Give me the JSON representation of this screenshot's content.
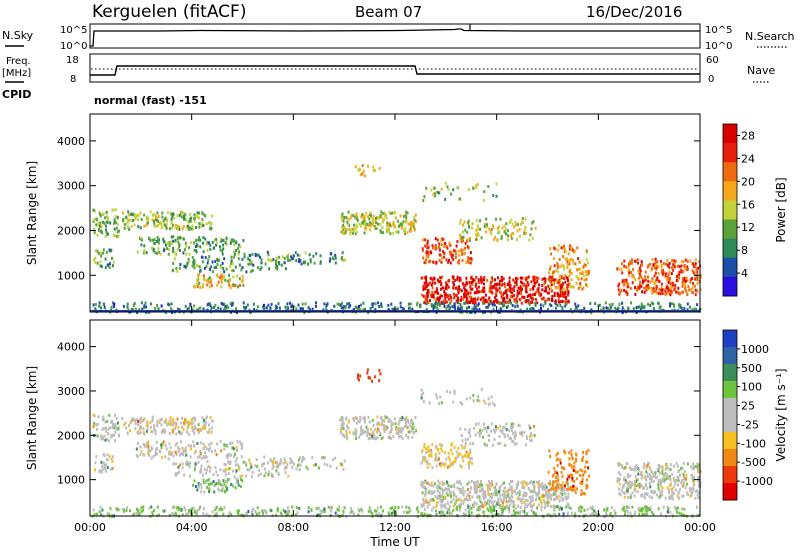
{
  "header": {
    "station": "Kerguelen (fitACF)",
    "beam": "Beam 07",
    "date": "16/Dec/2016"
  },
  "strip_labels": {
    "nsky": "N.Sky",
    "nsky_top": "10^5",
    "nsky_bottom": "10^0",
    "nsky_right_top": "10^5",
    "nsky_right_bottom": "10^0",
    "nsearch": "N.Search",
    "freq_line1": "Freq.",
    "freq_line2": "[MHz]",
    "freq_top": "18",
    "freq_bottom": "8",
    "nave_top": "60",
    "nave_bottom": "0",
    "nave": "Nave",
    "cpid": "CPID",
    "mode": "normal (fast) -151"
  },
  "colors": {
    "power_scale": [
      "#2b0fe0",
      "#1e4fa8",
      "#2f8a57",
      "#5aa23c",
      "#c4d23a",
      "#f4a81a",
      "#f06a10",
      "#e8200a",
      "#d90000"
    ],
    "velocity_scale": [
      "#1e3fc2",
      "#2e62a8",
      "#3a8d5c",
      "#6fc43e",
      "#bdbdbd",
      "#bdbdbd",
      "#f6c020",
      "#f08a14",
      "#ec3a0c",
      "#e00000"
    ]
  },
  "chart_data": [
    {
      "type": "heatmap",
      "title": "",
      "ylabel": "Slant Range [km]",
      "y_ticks": [
        "1000",
        "2000",
        "3000",
        "4000"
      ],
      "x_ticks": [
        "00:00",
        "04:00",
        "08:00",
        "12:00",
        "16:00",
        "20:00",
        "00:00"
      ],
      "xlim": [
        0,
        24
      ],
      "ylim": [
        180,
        4600
      ],
      "colorbar": {
        "label": "Power [dB]",
        "ticks": [
          "4",
          "8",
          "12",
          "16",
          "20",
          "24",
          "28"
        ],
        "range": [
          0,
          30
        ]
      }
    },
    {
      "type": "heatmap",
      "title": "",
      "ylabel": "Slant Range [km]",
      "xlabel": "Time UT",
      "y_ticks": [
        "1000",
        "2000",
        "3000",
        "4000"
      ],
      "x_ticks": [
        "00:00",
        "04:00",
        "08:00",
        "12:00",
        "16:00",
        "20:00",
        "00:00"
      ],
      "xlim": [
        0,
        24
      ],
      "ylim": [
        180,
        4600
      ],
      "colorbar": {
        "label": "Velocity [m s⁻¹]",
        "ticks": [
          "1000",
          "500",
          "100",
          "25",
          "-25",
          "-100",
          "-500",
          "-1000"
        ]
      }
    }
  ],
  "scatter_regions": [
    {
      "t0": 0.1,
      "t1": 1.1,
      "r0": 1900,
      "r1": 2500,
      "v": 12,
      "vv": 0,
      "d": 0.55
    },
    {
      "t0": 0.1,
      "t1": 0.9,
      "r0": 1200,
      "r1": 1600,
      "v": 10,
      "vv": 0,
      "d": 0.45
    },
    {
      "t0": 1.2,
      "t1": 4.8,
      "r0": 2050,
      "r1": 2450,
      "v": 13,
      "vv": -10,
      "d": 0.6
    },
    {
      "t0": 1.8,
      "t1": 6.0,
      "r0": 1500,
      "r1": 1900,
      "v": 11,
      "vv": 0,
      "d": 0.45
    },
    {
      "t0": 3.2,
      "t1": 7.8,
      "r0": 1100,
      "r1": 1450,
      "v": 10,
      "vv": 0,
      "d": 0.35
    },
    {
      "t0": 4.0,
      "t1": 6.0,
      "r0": 750,
      "r1": 1050,
      "v": 17,
      "vv": 40,
      "d": 0.55
    },
    {
      "t0": 6.0,
      "t1": 10.0,
      "r0": 1250,
      "r1": 1550,
      "v": 9,
      "vv": 0,
      "d": 0.3
    },
    {
      "t0": 9.8,
      "t1": 12.8,
      "r0": 1950,
      "r1": 2450,
      "v": 15,
      "vv": 0,
      "d": 0.7
    },
    {
      "t0": 10.4,
      "t1": 11.4,
      "r0": 3250,
      "r1": 3550,
      "v": 18,
      "vv": -600,
      "d": 0.25
    },
    {
      "t0": 13.0,
      "t1": 18.8,
      "r0": 400,
      "r1": 1000,
      "v": 27,
      "vv": 0,
      "d": 0.85
    },
    {
      "t0": 13.0,
      "t1": 15.0,
      "r0": 1300,
      "r1": 1850,
      "v": 23,
      "vv": -30,
      "d": 0.55
    },
    {
      "t0": 14.5,
      "t1": 17.5,
      "r0": 1800,
      "r1": 2300,
      "v": 15,
      "vv": 0,
      "d": 0.35
    },
    {
      "t0": 18.0,
      "t1": 19.6,
      "r0": 700,
      "r1": 1700,
      "v": 20,
      "vv": -200,
      "d": 0.4
    },
    {
      "t0": 20.7,
      "t1": 24.0,
      "r0": 600,
      "r1": 1400,
      "v": 23,
      "vv": 0,
      "d": 0.65
    },
    {
      "t0": 13.0,
      "t1": 16.0,
      "r0": 2700,
      "r1": 3100,
      "v": 13,
      "vv": 0,
      "d": 0.15
    },
    {
      "t0": 0.0,
      "t1": 24.0,
      "r0": 200,
      "r1": 420,
      "v": 8,
      "vv": 30,
      "d": 0.5
    }
  ]
}
